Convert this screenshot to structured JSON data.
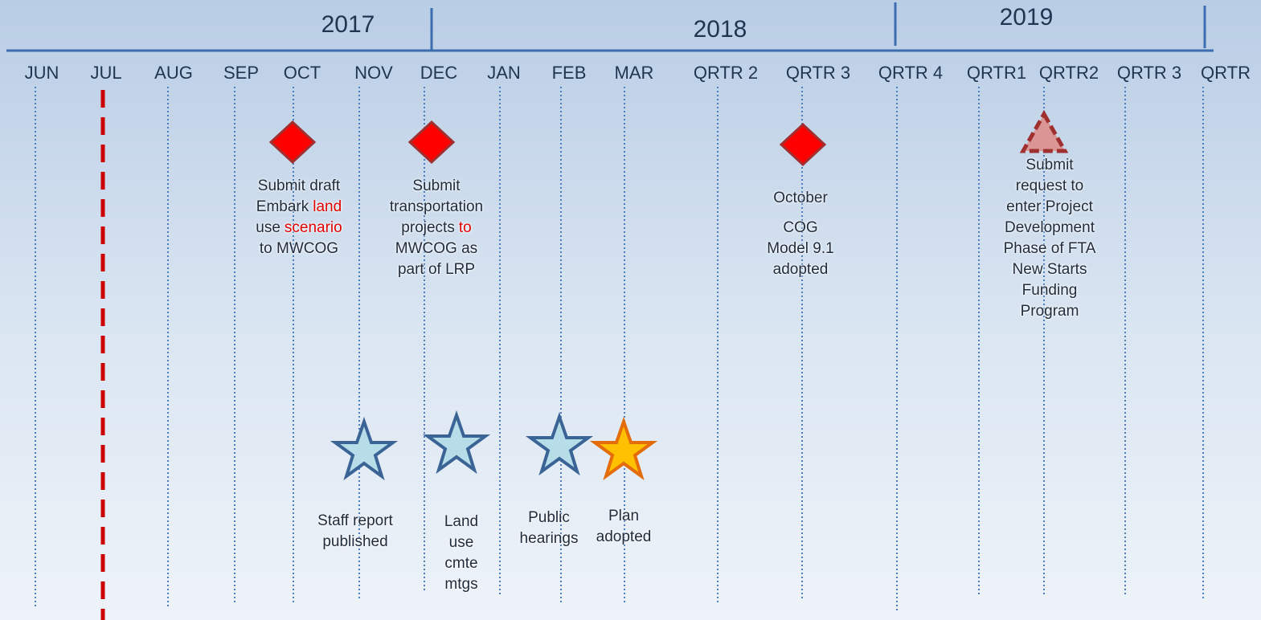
{
  "years": [
    "2017",
    "2018",
    "2019"
  ],
  "columns": [
    "JUN",
    "JUL",
    "AUG",
    "SEP",
    "OCT",
    "NOV",
    "DEC",
    "JAN",
    "FEB",
    "MAR",
    "QRTR 2",
    "QRTR 3",
    "QRTR 4",
    "QRTR1",
    "QRTR2",
    "QRTR 3",
    "QRTR"
  ],
  "events": [
    {
      "paragraphs": [
        [
          [
            "Submit draft"
          ],
          [
            "Embark",
            {
              "text": "land",
              "color": "#e00000"
            }
          ],
          [
            "use",
            {
              "text": "scenario",
              "color": "#e00000"
            }
          ],
          [
            "to MWCOG"
          ]
        ]
      ]
    },
    {
      "paragraphs": [
        [
          [
            "Submit"
          ],
          [
            "transportation"
          ],
          [
            "projects",
            {
              "text": "to",
              "color": "#e00000"
            }
          ],
          [
            "MWCOG as"
          ],
          [
            "part of LRP"
          ]
        ]
      ]
    },
    {
      "paragraphs": [
        [
          [
            "October"
          ]
        ],
        [
          [
            "COG"
          ],
          [
            "Model 9.1"
          ],
          [
            "adopted"
          ]
        ]
      ]
    },
    {
      "paragraphs": [
        [
          [
            "Submit"
          ],
          [
            "request to"
          ],
          [
            "enter Project"
          ],
          [
            "Development"
          ],
          [
            "Phase of FTA"
          ],
          [
            "New Starts"
          ],
          [
            "Funding"
          ],
          [
            "Program"
          ]
        ]
      ]
    },
    {
      "paragraphs": [
        [
          [
            "Staff report"
          ],
          [
            "published"
          ]
        ]
      ]
    },
    {
      "paragraphs": [
        [
          [
            "Land"
          ],
          [
            "use"
          ],
          [
            "cmte"
          ],
          [
            "mtgs"
          ]
        ]
      ]
    },
    {
      "paragraphs": [
        [
          [
            "Public"
          ],
          [
            "hearings"
          ]
        ]
      ]
    },
    {
      "paragraphs": [
        [
          [
            "Plan"
          ],
          [
            "adopted"
          ]
        ]
      ]
    }
  ]
}
